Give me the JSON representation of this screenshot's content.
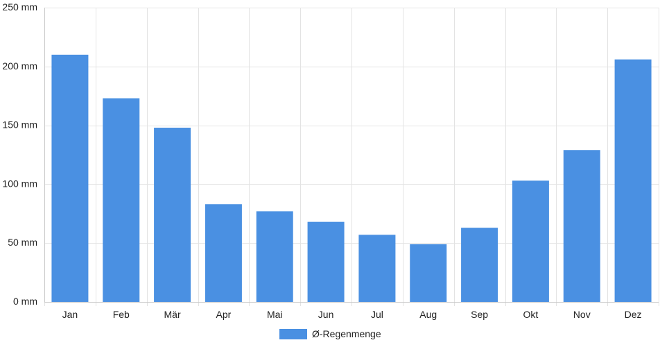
{
  "chart_data": {
    "type": "bar",
    "categories": [
      "Jan",
      "Feb",
      "Mär",
      "Apr",
      "Mai",
      "Jun",
      "Jul",
      "Aug",
      "Sep",
      "Okt",
      "Nov",
      "Dez"
    ],
    "series": [
      {
        "name": "Ø-Regenmenge",
        "values": [
          210,
          173,
          148,
          83,
          77,
          68,
          57,
          49,
          63,
          103,
          129,
          206
        ],
        "color": "#4a90e2"
      }
    ],
    "ylim": [
      0,
      250
    ],
    "yticks": [
      0,
      50,
      100,
      150,
      200,
      250
    ],
    "ytick_labels": [
      "0 mm",
      "50 mm",
      "100 mm",
      "150 mm",
      "200 mm",
      "250 mm"
    ],
    "grid": true,
    "legend_position": "bottom-center"
  }
}
